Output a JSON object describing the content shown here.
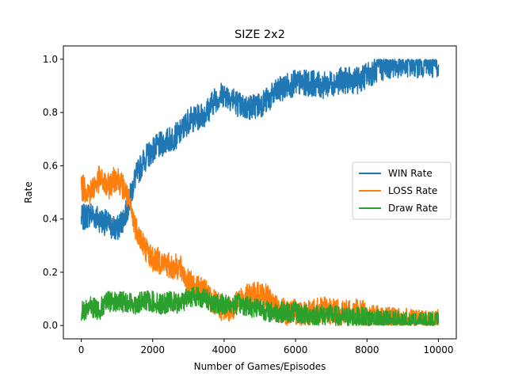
{
  "chart_data": {
    "type": "line",
    "title": "SIZE 2x2",
    "xlabel": "Number of Games/Episodes",
    "ylabel": "Rate",
    "xlim": [
      -500,
      10500
    ],
    "ylim": [
      -0.05,
      1.05
    ],
    "xticks": [
      0,
      2000,
      4000,
      6000,
      8000,
      10000
    ],
    "xtick_labels": [
      "0",
      "2000",
      "4000",
      "6000",
      "8000",
      "10000"
    ],
    "yticks": [
      0.0,
      0.2,
      0.4,
      0.6,
      0.8,
      1.0
    ],
    "ytick_labels": [
      "0.0",
      "0.2",
      "0.4",
      "0.6",
      "0.8",
      "1.0"
    ],
    "grid": false,
    "legend_position": "center-right",
    "x": [
      0,
      250,
      500,
      750,
      1000,
      1250,
      1500,
      1750,
      2000,
      2250,
      2500,
      2750,
      3000,
      3250,
      3500,
      3750,
      4000,
      4250,
      4500,
      4750,
      5000,
      5250,
      5500,
      5750,
      6000,
      6250,
      6500,
      6750,
      7000,
      7250,
      7500,
      7750,
      8000,
      8250,
      8500,
      8750,
      9000,
      9250,
      9500,
      9750,
      10000
    ],
    "series": [
      {
        "name": "WIN Rate",
        "color": "#1f77b4",
        "values": [
          0.4,
          0.42,
          0.4,
          0.38,
          0.36,
          0.42,
          0.55,
          0.62,
          0.66,
          0.68,
          0.7,
          0.72,
          0.77,
          0.78,
          0.8,
          0.85,
          0.87,
          0.85,
          0.82,
          0.82,
          0.83,
          0.85,
          0.88,
          0.9,
          0.91,
          0.91,
          0.91,
          0.9,
          0.91,
          0.92,
          0.92,
          0.92,
          0.94,
          0.96,
          0.97,
          0.98,
          0.98,
          0.98,
          0.98,
          0.98,
          0.98
        ]
      },
      {
        "name": "LOSS Rate",
        "color": "#ff7f0e",
        "values": [
          0.52,
          0.5,
          0.55,
          0.52,
          0.56,
          0.5,
          0.38,
          0.3,
          0.25,
          0.24,
          0.22,
          0.22,
          0.16,
          0.14,
          0.12,
          0.08,
          0.06,
          0.07,
          0.1,
          0.11,
          0.12,
          0.1,
          0.06,
          0.05,
          0.05,
          0.05,
          0.05,
          0.06,
          0.05,
          0.05,
          0.05,
          0.05,
          0.04,
          0.03,
          0.02,
          0.02,
          0.02,
          0.01,
          0.01,
          0.01,
          0.01
        ]
      },
      {
        "name": "Draw Rate",
        "color": "#2ca02c",
        "values": [
          0.05,
          0.07,
          0.06,
          0.09,
          0.09,
          0.09,
          0.08,
          0.09,
          0.09,
          0.08,
          0.09,
          0.08,
          0.11,
          0.11,
          0.1,
          0.08,
          0.08,
          0.08,
          0.08,
          0.07,
          0.07,
          0.05,
          0.05,
          0.05,
          0.05,
          0.04,
          0.04,
          0.04,
          0.04,
          0.03,
          0.03,
          0.03,
          0.03,
          0.02,
          0.02,
          0.02,
          0.01,
          0.01,
          0.01,
          0.01,
          0.01
        ]
      }
    ],
    "noise_amplitude": [
      0.05,
      0.05,
      0.04
    ]
  }
}
